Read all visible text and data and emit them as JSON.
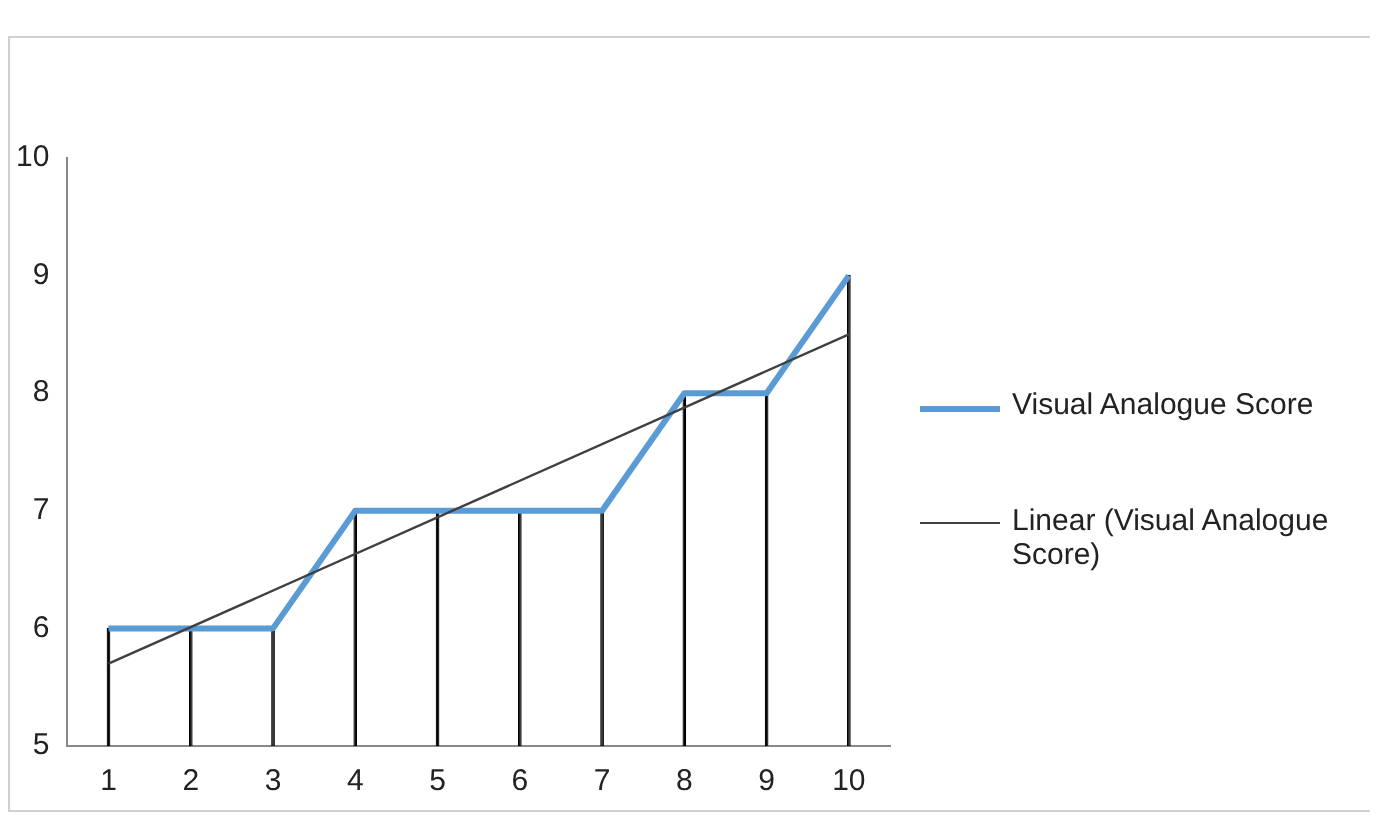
{
  "chart_data": {
    "type": "line",
    "categories": [
      "1",
      "2",
      "3",
      "4",
      "5",
      "6",
      "7",
      "8",
      "9",
      "10"
    ],
    "series": [
      {
        "name": "Visual Analogue Score",
        "color": "#5b9bd5",
        "values": [
          6,
          6,
          6,
          7,
          7,
          7,
          7,
          8,
          8,
          9
        ]
      },
      {
        "name": "Linear (Visual Analogue Score)",
        "color": "#404040",
        "type": "line",
        "x": [
          "1",
          "10"
        ],
        "values": [
          5.7,
          8.5
        ]
      },
      {
        "color": "#000000",
        "type": "bar",
        "values": [
          6,
          6,
          6,
          7,
          7,
          7,
          7,
          8,
          8,
          9
        ]
      }
    ],
    "ylim": [
      5,
      10
    ],
    "yticks": [
      5,
      6,
      7,
      8,
      9,
      10
    ],
    "grid": false,
    "legend": "right",
    "marker": "none"
  }
}
